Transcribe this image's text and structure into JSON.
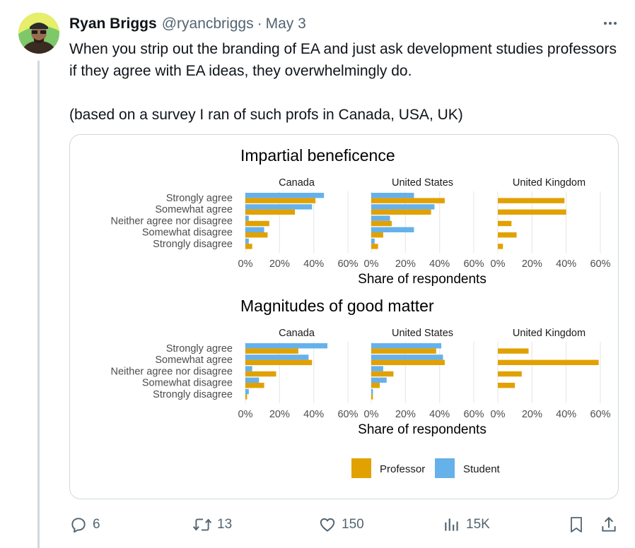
{
  "tweet": {
    "author_name": "Ryan Briggs",
    "handle": "@ryancbriggs",
    "separator": "·",
    "date": "May 3",
    "text_line1": "When you strip out the branding of EA and just ask development studies professors if they agree with EA ideas, they overwhelmingly do.",
    "text_line2": "(based on a survey I ran of such profs in Canada, USA, UK)",
    "avatar_icon": "person-avatar-icon",
    "more_icon": "more-dots-icon"
  },
  "actions": {
    "replies": "6",
    "reposts": "13",
    "likes": "150",
    "views": "15K",
    "icons": [
      "reply-icon",
      "repost-icon",
      "like-icon",
      "views-icon",
      "bookmark-icon",
      "share-icon"
    ]
  },
  "colors": {
    "professor": "#e1a100",
    "student": "#66b1ea",
    "text": "#0f1419",
    "muted": "#536471",
    "border": "#cfd9de"
  },
  "chart_data": {
    "type": "bar",
    "orientation": "horizontal",
    "categories": [
      "Strongly agree",
      "Somewhat agree",
      "Neither agree nor disagree",
      "Somewhat disagree",
      "Strongly disagree"
    ],
    "countries": [
      "Canada",
      "United States",
      "United Kingdom"
    ],
    "xlabel": "Share of respondents",
    "xticks": [
      "0%",
      "20%",
      "40%",
      "60%"
    ],
    "xlim": [
      0,
      60
    ],
    "legend": {
      "position": "bottom",
      "entries": [
        "Professor",
        "Student"
      ]
    },
    "panels": [
      {
        "title": "Impartial beneficence",
        "series": [
          {
            "name": "Professor",
            "values": {
              "Canada": [
                41,
                29,
                14,
                13,
                4
              ],
              "United States": [
                43,
                35,
                12,
                7,
                4
              ],
              "United Kingdom": [
                39,
                40,
                8,
                11,
                3
              ]
            }
          },
          {
            "name": "Student",
            "values": {
              "Canada": [
                46,
                39,
                2,
                11,
                2
              ],
              "United States": [
                25,
                37,
                11,
                25,
                2
              ],
              "United Kingdom": [
                null,
                null,
                null,
                null,
                null
              ]
            }
          }
        ]
      },
      {
        "title": "Magnitudes of good matter",
        "series": [
          {
            "name": "Professor",
            "values": {
              "Canada": [
                31,
                39,
                18,
                11,
                1
              ],
              "United States": [
                38,
                43,
                13,
                5,
                1
              ],
              "United Kingdom": [
                18,
                59,
                14,
                10,
                0
              ]
            }
          },
          {
            "name": "Student",
            "values": {
              "Canada": [
                48,
                37,
                4,
                8,
                2
              ],
              "United States": [
                41,
                42,
                7,
                9,
                1
              ],
              "United Kingdom": [
                null,
                null,
                null,
                null,
                null
              ]
            }
          }
        ]
      }
    ]
  }
}
